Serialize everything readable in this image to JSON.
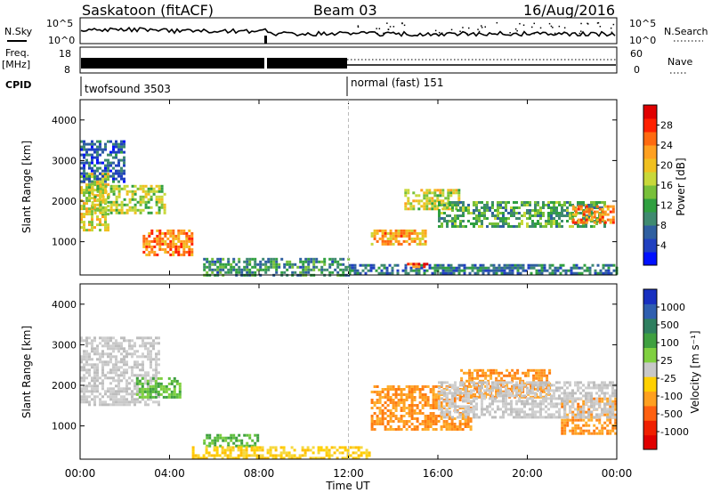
{
  "header": {
    "station": "Saskatoon (fitACF)",
    "beam": "Beam 03",
    "date": "16/Aug/2016"
  },
  "status_panels": {
    "nsky_label": "N.Sky",
    "nsky_ticks": [
      "10^5",
      "10^0"
    ],
    "nsearch_label": "N.Search",
    "nsearch_ticks": [
      "10^5",
      "10^0"
    ],
    "freq_label": "Freq.",
    "freq_unit": "[MHz]",
    "freq_ticks": [
      "18",
      "8"
    ],
    "nave_label": "Nave",
    "nave_ticks": [
      "60",
      "0"
    ],
    "cpid_label": "CPID",
    "cpid_modes": [
      {
        "name": "twofsound 3503",
        "start_hour": 0,
        "end_hour": 12
      },
      {
        "name": "normal (fast) 151",
        "start_hour": 12,
        "end_hour": 24
      }
    ]
  },
  "chart_data": [
    {
      "type": "heatmap",
      "name": "power",
      "ylabel": "Slant Range [km]",
      "xlabel": "",
      "x_range_hours": [
        0,
        24
      ],
      "ylim": [
        180,
        4500
      ],
      "y_ticks": [
        1000,
        2000,
        3000,
        4000
      ],
      "colorbar": {
        "label": "Power [dB]",
        "range": [
          0,
          32
        ],
        "ticks": [
          "4",
          "8",
          "12",
          "16",
          "20",
          "24",
          "28"
        ],
        "colors": [
          "#0010ff",
          "#2040c0",
          "#2f5fa0",
          "#3f8a70",
          "#30a040",
          "#78c03a",
          "#c8d83a",
          "#f0c020",
          "#ffa020",
          "#ff6a10",
          "#ff2000",
          "#e00000"
        ]
      },
      "echo_regions": [
        {
          "t0": 0.0,
          "t1": 1.2,
          "r0": 1300,
          "r1": 2700,
          "level": 18
        },
        {
          "t0": 0.5,
          "t1": 3.8,
          "r0": 1700,
          "r1": 2400,
          "level": 16
        },
        {
          "t0": 2.8,
          "t1": 5.0,
          "r0": 700,
          "r1": 1300,
          "level": 24
        },
        {
          "t0": 0.0,
          "t1": 2.0,
          "r0": 2500,
          "r1": 3500,
          "level": 6
        },
        {
          "t0": 5.5,
          "t1": 12.0,
          "r0": 200,
          "r1": 600,
          "level": 10
        },
        {
          "t0": 13.0,
          "t1": 15.5,
          "r0": 950,
          "r1": 1300,
          "level": 22
        },
        {
          "t0": 14.5,
          "t1": 17.0,
          "r0": 1800,
          "r1": 2300,
          "level": 18
        },
        {
          "t0": 16.0,
          "t1": 23.5,
          "r0": 1400,
          "r1": 2000,
          "level": 12
        },
        {
          "t0": 22.0,
          "t1": 23.8,
          "r0": 1450,
          "r1": 1900,
          "level": 24
        },
        {
          "t0": 12.0,
          "t1": 24.0,
          "r0": 200,
          "r1": 450,
          "level": 8
        },
        {
          "t0": 14.5,
          "t1": 15.6,
          "r0": 380,
          "r1": 480,
          "level": 28
        }
      ]
    },
    {
      "type": "heatmap",
      "name": "velocity",
      "ylabel": "Slant Range [km]",
      "xlabel": "Time UT",
      "x_range_hours": [
        0,
        24
      ],
      "x_ticks": [
        "00:00",
        "04:00",
        "08:00",
        "12:00",
        "16:00",
        "20:00",
        "00:00"
      ],
      "ylim": [
        180,
        4500
      ],
      "y_ticks": [
        1000,
        2000,
        3000,
        4000
      ],
      "colorbar": {
        "label": "Velocity [m s⁻¹]",
        "ticks": [
          "1000",
          "500",
          "100",
          "25",
          "-25",
          "-100",
          "-500",
          "-1000"
        ],
        "colors": [
          "#1830c0",
          "#2f5fb0",
          "#2f7f60",
          "#3fa040",
          "#80d040",
          "#c8c8c8",
          "#ffd000",
          "#ffa020",
          "#ff6010",
          "#f02000",
          "#e00000"
        ]
      },
      "echo_regions": [
        {
          "t0": 0.0,
          "t1": 3.5,
          "r0": 1500,
          "r1": 3200,
          "level": "grey"
        },
        {
          "t0": 2.5,
          "t1": 4.5,
          "r0": 1700,
          "r1": 2200,
          "level": "green"
        },
        {
          "t0": 5.5,
          "t1": 8.0,
          "r0": 500,
          "r1": 800,
          "level": "green"
        },
        {
          "t0": 5.0,
          "t1": 13.0,
          "r0": 200,
          "r1": 500,
          "level": "yellow"
        },
        {
          "t0": 13.0,
          "t1": 17.5,
          "r0": 900,
          "r1": 2000,
          "level": "orange"
        },
        {
          "t0": 17.0,
          "t1": 21.0,
          "r0": 1700,
          "r1": 2400,
          "level": "orange"
        },
        {
          "t0": 21.5,
          "t1": 24.0,
          "r0": 800,
          "r1": 1700,
          "level": "orange"
        },
        {
          "t0": 16.0,
          "t1": 24.0,
          "r0": 1200,
          "r1": 2100,
          "level": "grey"
        }
      ]
    }
  ]
}
